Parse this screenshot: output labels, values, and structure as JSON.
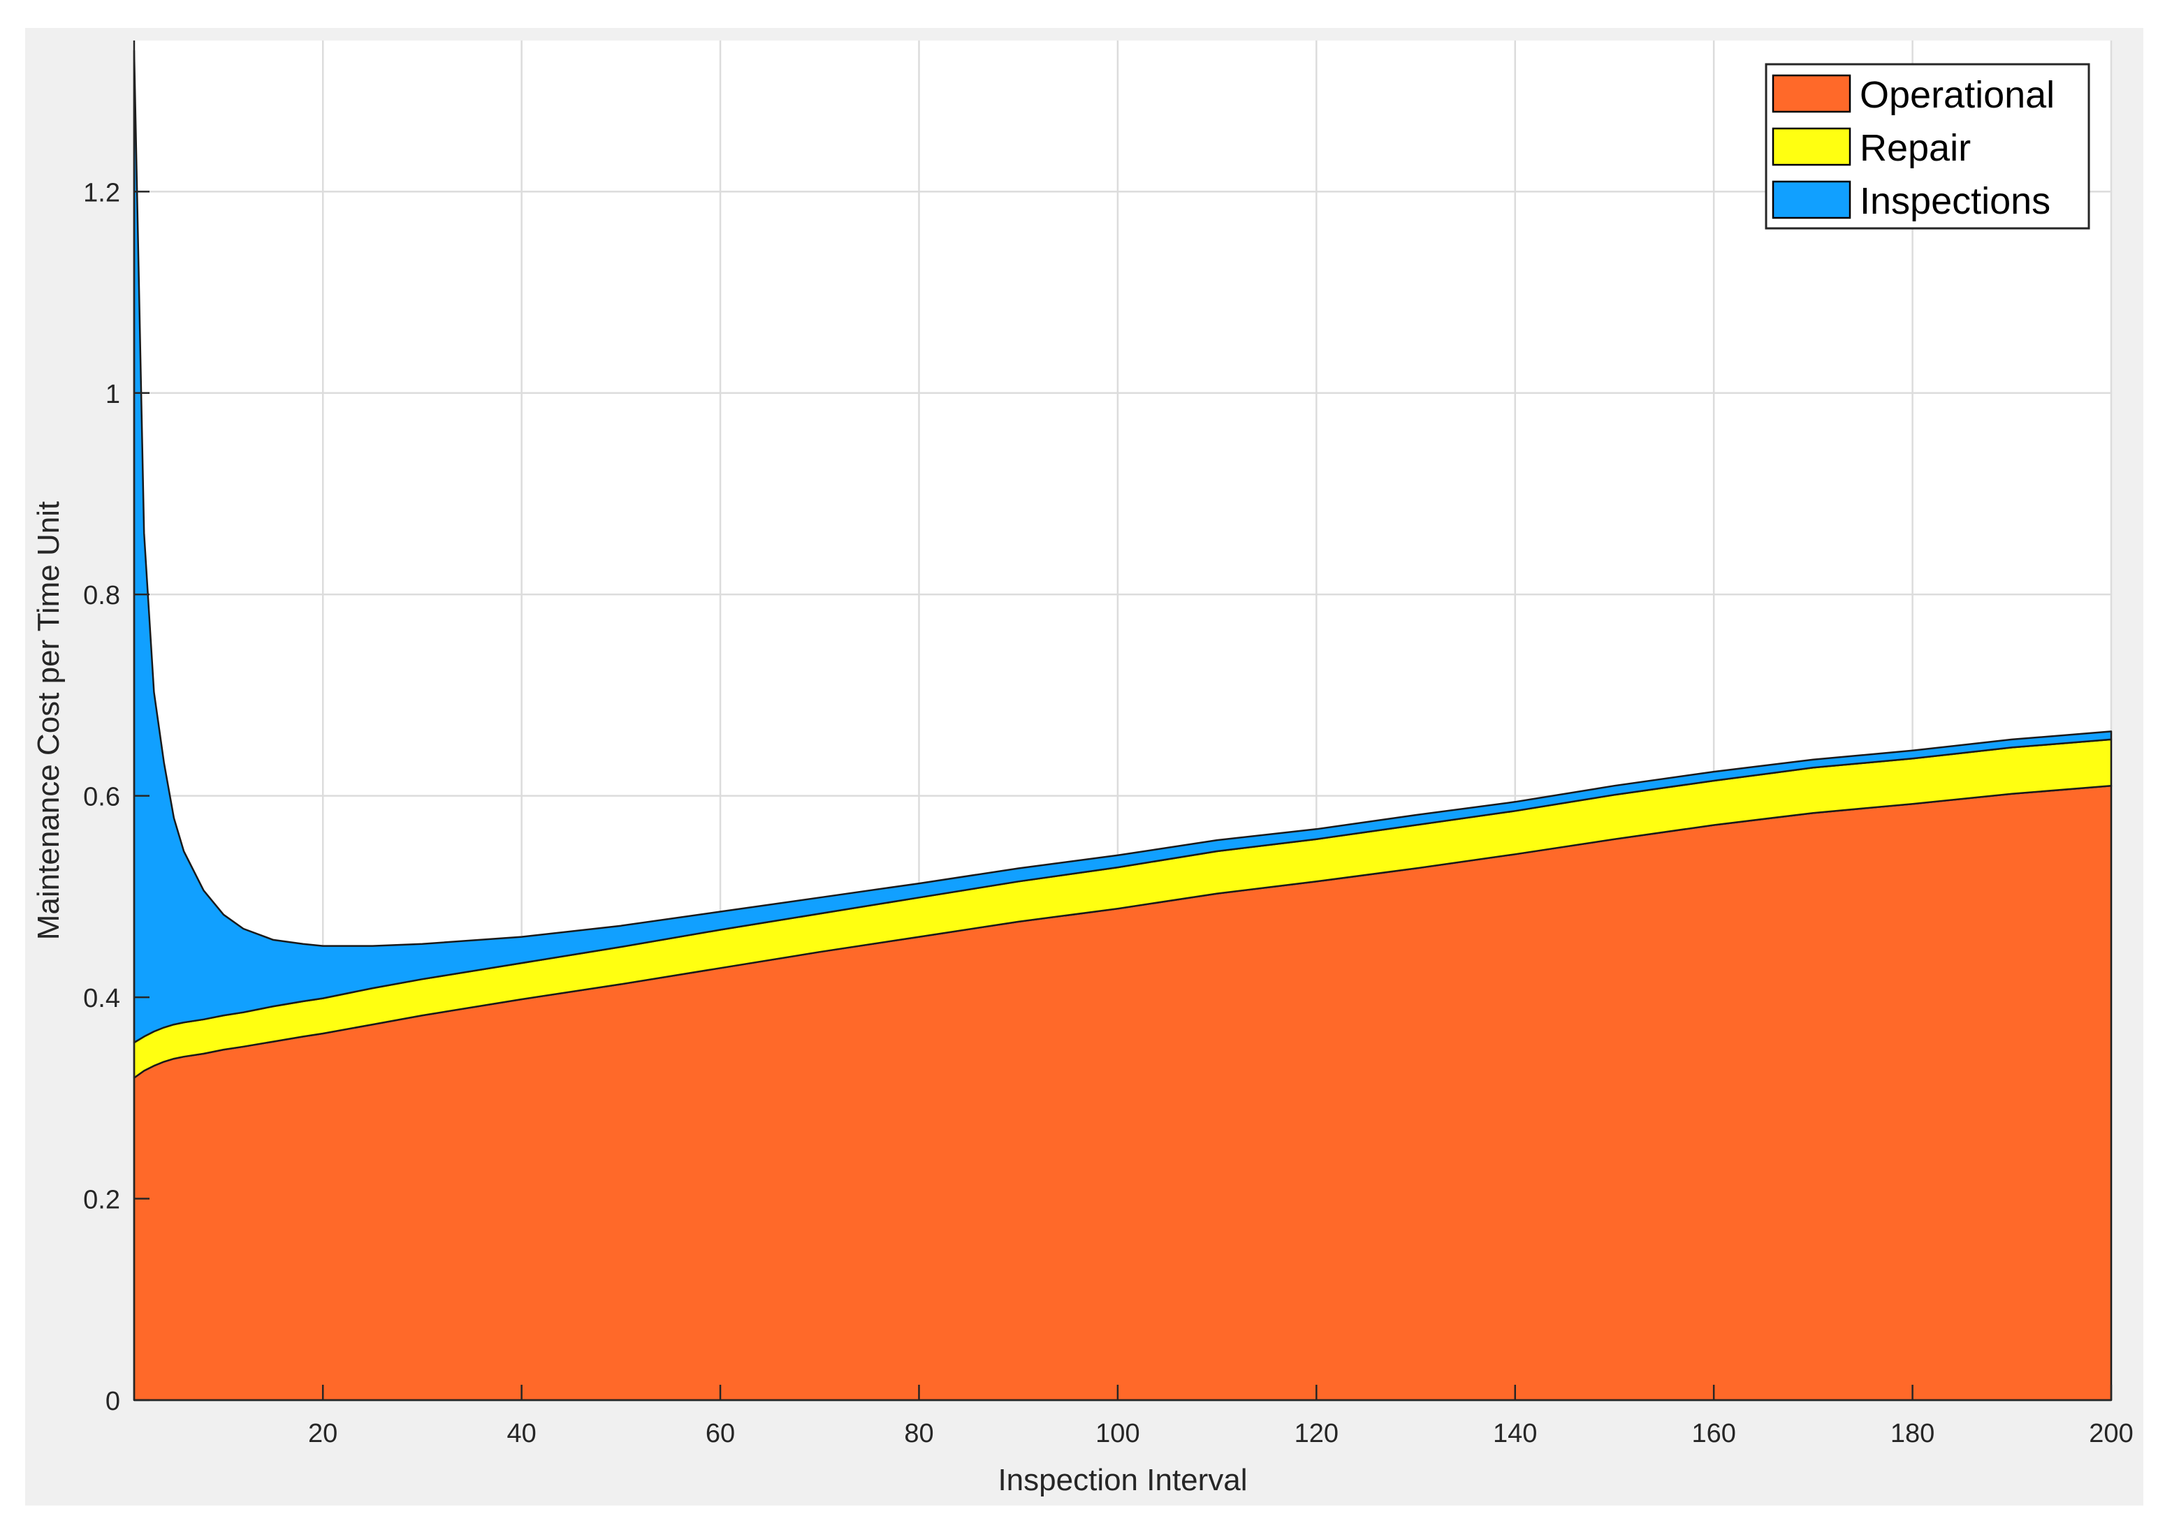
{
  "chart_data": {
    "type": "area",
    "stacked": true,
    "xlabel": "Inspection Interval",
    "ylabel": "Maintenance Cost per Time Unit",
    "xlim": [
      1,
      200
    ],
    "ylim": [
      0,
      1.35
    ],
    "xticks": [
      20,
      40,
      60,
      80,
      100,
      120,
      140,
      160,
      180,
      200
    ],
    "yticks": [
      0,
      0.2,
      0.4,
      0.6,
      0.8,
      1,
      1.2
    ],
    "ytick_labels": [
      "0",
      "0.2",
      "0.4",
      "0.6",
      "0.8",
      "1",
      "1.2"
    ],
    "grid": true,
    "legend_position": "top-right",
    "x": [
      1,
      2,
      3,
      4,
      5,
      6,
      8,
      10,
      12,
      15,
      18,
      20,
      25,
      30,
      40,
      50,
      60,
      70,
      80,
      90,
      100,
      110,
      120,
      130,
      140,
      150,
      160,
      170,
      180,
      190,
      200
    ],
    "series": [
      {
        "name": "Operational",
        "color": "#ff6929",
        "values": [
          0.32,
          0.327,
          0.332,
          0.336,
          0.339,
          0.341,
          0.344,
          0.348,
          0.351,
          0.356,
          0.361,
          0.364,
          0.373,
          0.382,
          0.398,
          0.413,
          0.429,
          0.445,
          0.46,
          0.475,
          0.488,
          0.503,
          0.515,
          0.528,
          0.542,
          0.557,
          0.571,
          0.583,
          0.592,
          0.602,
          0.61
        ]
      },
      {
        "name": "Repair",
        "color": "#ffff11",
        "values": [
          0.035,
          0.034,
          0.034,
          0.034,
          0.034,
          0.034,
          0.034,
          0.034,
          0.034,
          0.035,
          0.035,
          0.035,
          0.036,
          0.036,
          0.036,
          0.037,
          0.038,
          0.038,
          0.039,
          0.04,
          0.041,
          0.042,
          0.042,
          0.043,
          0.043,
          0.044,
          0.044,
          0.045,
          0.045,
          0.046,
          0.046
        ]
      },
      {
        "name": "Inspections",
        "color": "#11a0ff",
        "values": [
          0.985,
          0.5,
          0.337,
          0.263,
          0.205,
          0.17,
          0.128,
          0.1,
          0.083,
          0.066,
          0.057,
          0.052,
          0.042,
          0.035,
          0.026,
          0.021,
          0.018,
          0.016,
          0.014,
          0.013,
          0.012,
          0.011,
          0.01,
          0.01,
          0.009,
          0.009,
          0.009,
          0.008,
          0.008,
          0.008,
          0.008
        ]
      }
    ]
  }
}
